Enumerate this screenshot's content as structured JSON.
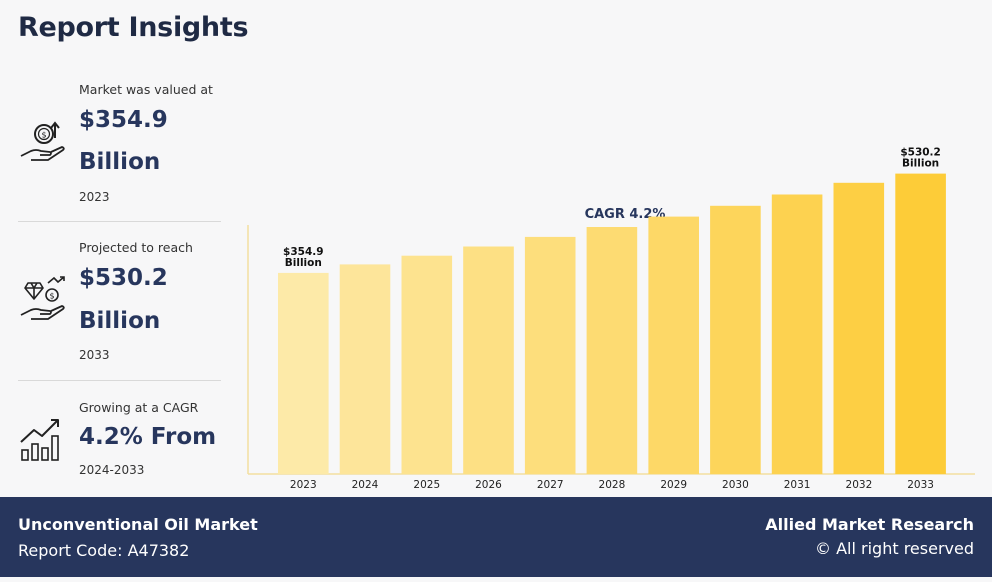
{
  "page": {
    "title": "Report Insights"
  },
  "stats": [
    {
      "label": "Market was valued at",
      "value_line1": "$354.9",
      "value_line2": "Billion",
      "year": "2023",
      "icon": "money-hand-icon"
    },
    {
      "label": "Projected to reach",
      "value_line1": "$530.2",
      "value_line2": "Billion",
      "year": "2033",
      "icon": "diamond-hand-icon"
    },
    {
      "label": "Growing at a CAGR",
      "value_line1": "4.2% From",
      "year": "2024-2033",
      "icon": "growth-bars-icon"
    }
  ],
  "chart_data": {
    "type": "bar",
    "title": "CAGR 4.2%",
    "categories": [
      "2023",
      "2024",
      "2025",
      "2026",
      "2027",
      "2028",
      "2029",
      "2030",
      "2031",
      "2032",
      "2033"
    ],
    "values": [
      354.9,
      369.8,
      385.3,
      401.5,
      418.4,
      435.9,
      454.2,
      473.3,
      493.2,
      513.9,
      530.2
    ],
    "annotations": [
      {
        "category": "2023",
        "line1": "$354.9",
        "line2": "Billion"
      },
      {
        "category": "2033",
        "line1": "$530.2",
        "line2": "Billion"
      }
    ],
    "ylim": [
      0,
      600
    ],
    "colors": [
      "#fdeaa8",
      "#fde59a",
      "#fde38f",
      "#fde084",
      "#fdde7c",
      "#fddb72",
      "#fdd867",
      "#fdd55b",
      "#fdd250",
      "#fdcf44",
      "#fdcc38"
    ],
    "grid": false,
    "legend": "none"
  },
  "footer": {
    "market_name": "Unconventional Oil Market",
    "report_code": "Report Code: A47382",
    "brand": "Allied Market Research",
    "rights": "© All right reserved"
  }
}
